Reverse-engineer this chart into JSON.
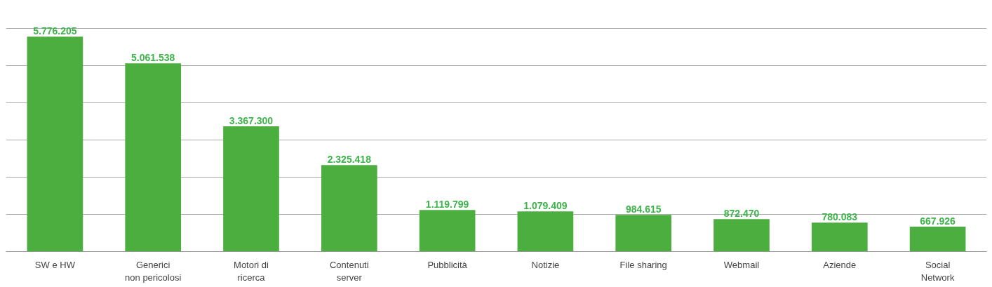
{
  "chart_data": {
    "type": "bar",
    "categories": [
      "SW e HW",
      "Generici\nnon pericolosi",
      "Motori di\nricerca",
      "Contenuti\nserver",
      "Pubblicità",
      "Notizie",
      "File sharing",
      "Webmail",
      "Aziende",
      "Social\nNetwork"
    ],
    "values": [
      5776205,
      5061538,
      3367300,
      2325418,
      1119799,
      1079409,
      984615,
      872470,
      780083,
      667926
    ],
    "value_labels": [
      "5.776.205",
      "5.061.538",
      "3.367.300",
      "2.325.418",
      "1.119.799",
      "1.079.409",
      "984.615",
      "872.470",
      "780.083",
      "667.926"
    ],
    "color": "#4cae3f",
    "grid": "y",
    "tick_labels": "x"
  }
}
